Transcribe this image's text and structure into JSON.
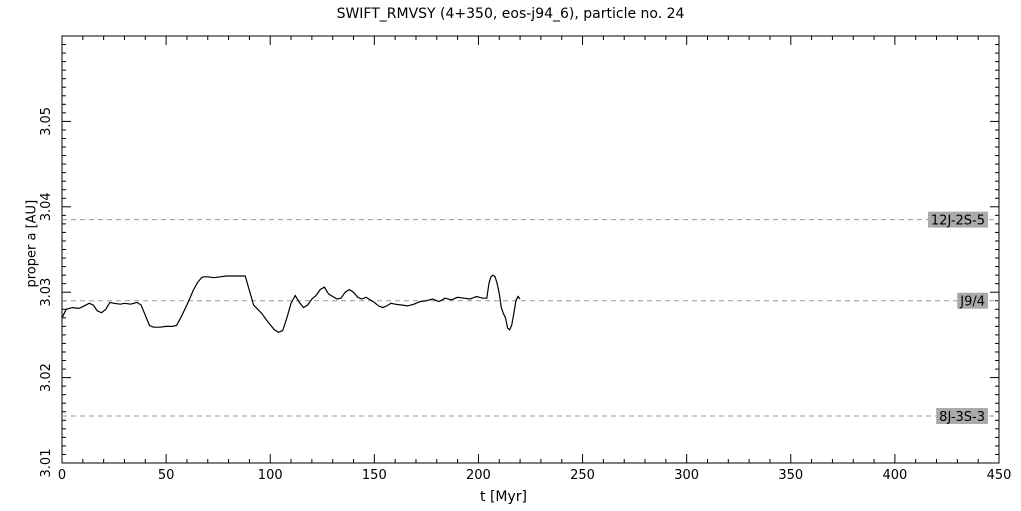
{
  "chart_data": {
    "type": "line",
    "title": "SWIFT_RMVSY (4+350, eos-j94_6), particle no. 24",
    "xlabel": "t [Myr]",
    "ylabel": "proper a [AU]",
    "xlim": [
      0,
      450
    ],
    "ylim": [
      3.01,
      3.06
    ],
    "xticks": [
      "0",
      "50",
      "100",
      "150",
      "200",
      "250",
      "300",
      "350",
      "400",
      "450"
    ],
    "yticks": [
      "3.01",
      "3.02",
      "3.03",
      "3.04",
      "3.05"
    ],
    "grid": false,
    "resonances": [
      {
        "label": "12J-2S-5",
        "value": 3.0385
      },
      {
        "label": "J9/4",
        "value": 3.029
      },
      {
        "label": "8J-3S-3",
        "value": 3.0155
      }
    ],
    "series": [
      {
        "x": [
          0,
          2,
          5,
          8,
          10,
          13,
          15,
          17,
          19,
          21,
          23,
          25,
          28,
          30,
          33,
          36,
          38,
          40,
          42,
          44,
          47,
          50,
          53,
          55,
          57,
          60,
          63,
          65,
          67,
          68,
          70,
          73,
          76,
          79,
          82,
          85,
          88,
          90,
          92,
          94,
          96,
          98,
          100,
          102,
          104,
          106,
          108,
          110,
          112,
          114,
          116,
          118,
          120,
          122,
          124,
          126,
          128,
          130,
          132,
          134,
          136,
          138,
          140,
          142,
          144,
          146,
          148,
          150,
          152,
          154,
          156,
          158,
          160,
          163,
          166,
          169,
          172,
          175,
          178,
          181,
          184,
          187,
          190,
          193,
          196,
          199,
          202,
          204,
          205,
          206,
          207,
          208,
          209,
          210,
          211,
          212,
          213,
          214,
          215,
          216,
          217,
          218,
          219,
          220
        ],
        "y": [
          3.027,
          3.028,
          3.0282,
          3.0281,
          3.0283,
          3.0287,
          3.0285,
          3.0278,
          3.0276,
          3.028,
          3.0288,
          3.0287,
          3.0286,
          3.0287,
          3.0286,
          3.0288,
          3.0285,
          3.0273,
          3.0261,
          3.0259,
          3.0259,
          3.026,
          3.026,
          3.0261,
          3.027,
          3.0285,
          3.0302,
          3.0311,
          3.0317,
          3.0318,
          3.0318,
          3.0317,
          3.0318,
          3.0319,
          3.0319,
          3.0319,
          3.0319,
          3.0302,
          3.0285,
          3.028,
          3.0275,
          3.0268,
          3.0262,
          3.0256,
          3.0253,
          3.0255,
          3.027,
          3.0287,
          3.0296,
          3.0288,
          3.0282,
          3.0285,
          3.0292,
          3.0296,
          3.0303,
          3.0306,
          3.0298,
          3.0295,
          3.0292,
          3.0293,
          3.03,
          3.0303,
          3.03,
          3.0294,
          3.0292,
          3.0294,
          3.0291,
          3.0288,
          3.0284,
          3.0282,
          3.0284,
          3.0287,
          3.0286,
          3.0285,
          3.0284,
          3.0286,
          3.0289,
          3.029,
          3.0292,
          3.0289,
          3.0293,
          3.0291,
          3.0294,
          3.0293,
          3.0292,
          3.0295,
          3.0293,
          3.0293,
          3.031,
          3.0318,
          3.032,
          3.0318,
          3.031,
          3.0298,
          3.0282,
          3.0275,
          3.027,
          3.0258,
          3.0256,
          3.0262,
          3.0275,
          3.029,
          3.0295,
          3.0292
        ]
      }
    ]
  }
}
